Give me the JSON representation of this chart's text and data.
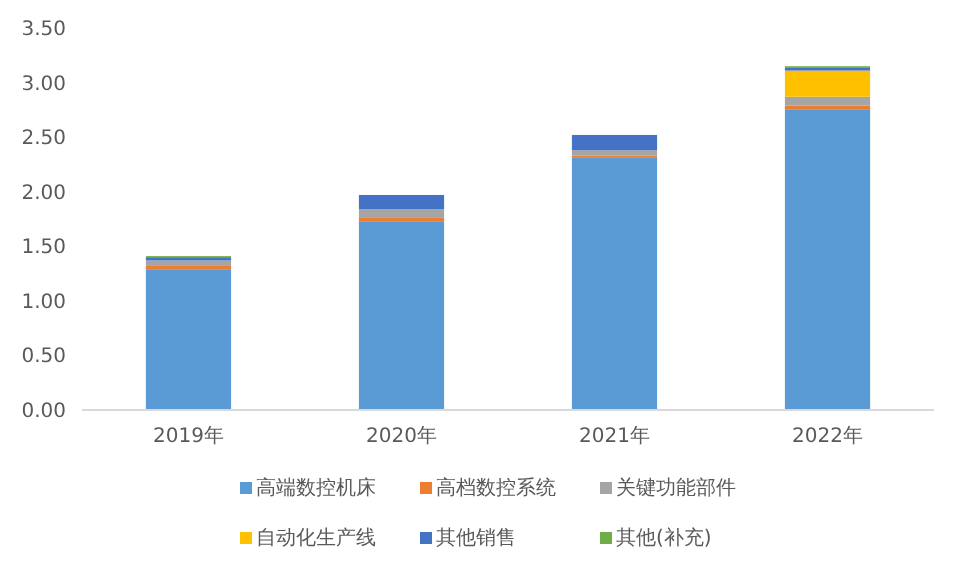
{
  "chart_data": {
    "type": "bar",
    "stacked": true,
    "categories": [
      "2019年",
      "2020年",
      "2021年",
      "2022年"
    ],
    "series": [
      {
        "name": "高端数控机床",
        "color": "#5b9bd5",
        "values": [
          1.29,
          1.73,
          2.31,
          2.75
        ]
      },
      {
        "name": "高档数控系统",
        "color": "#ed7d31",
        "values": [
          0.03,
          0.03,
          0.02,
          0.04
        ]
      },
      {
        "name": "关键功能部件",
        "color": "#a5a5a5",
        "values": [
          0.05,
          0.08,
          0.05,
          0.08
        ]
      },
      {
        "name": "自动化生产线",
        "color": "#ffc000",
        "values": [
          0,
          0,
          0,
          0.24
        ]
      },
      {
        "name": "其他销售",
        "color": "#4472c4",
        "values": [
          0.03,
          0.13,
          0.14,
          0.03
        ]
      },
      {
        "name": "其他(补充)",
        "color": "#70ad47",
        "values": [
          0.01,
          0,
          0,
          0.01
        ]
      }
    ],
    "ylim": [
      0,
      3.5
    ],
    "yticks": [
      {
        "value": 0,
        "label": "0.00"
      },
      {
        "value": 0.5,
        "label": "0.50"
      },
      {
        "value": 1,
        "label": "1.00"
      },
      {
        "value": 1.5,
        "label": "1.50"
      },
      {
        "value": 2,
        "label": "2.00"
      },
      {
        "value": 2.5,
        "label": "2.50"
      },
      {
        "value": 3,
        "label": "3.00"
      },
      {
        "value": 3.5,
        "label": "3.50"
      }
    ],
    "legend": "bottom"
  }
}
